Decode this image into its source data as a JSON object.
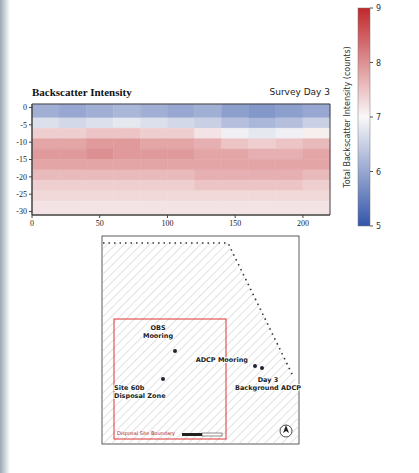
{
  "chart_data": {
    "type": "heatmap",
    "title": "Backscatter Intensity",
    "subtitle": "Survey Day 3",
    "x_edges": [
      0,
      20,
      40,
      60,
      80,
      100,
      120,
      140,
      160,
      180,
      200,
      220
    ],
    "y_edges": [
      1,
      -3,
      -6,
      -9,
      -12,
      -15,
      -18,
      -21,
      -24,
      -27,
      -31
    ],
    "cells": [
      [
        6.1,
        6.0,
        6.1,
        6.2,
        6.1,
        6.0,
        6.1,
        5.9,
        5.8,
        5.9,
        6.0
      ],
      [
        6.7,
        6.6,
        6.7,
        6.8,
        6.7,
        6.6,
        6.5,
        6.3,
        6.2,
        6.3,
        6.5
      ],
      [
        7.4,
        7.4,
        7.5,
        7.5,
        7.4,
        7.4,
        7.2,
        6.9,
        6.8,
        6.9,
        7.1
      ],
      [
        7.8,
        7.8,
        7.9,
        7.9,
        7.8,
        7.8,
        7.7,
        7.5,
        7.4,
        7.5,
        7.6
      ],
      [
        7.9,
        7.9,
        8.0,
        7.9,
        7.9,
        7.9,
        7.8,
        7.8,
        7.7,
        7.7,
        7.8
      ],
      [
        7.8,
        7.8,
        7.8,
        7.8,
        7.8,
        7.8,
        7.8,
        7.8,
        7.8,
        7.8,
        7.8
      ],
      [
        7.6,
        7.6,
        7.6,
        7.6,
        7.6,
        7.6,
        7.7,
        7.7,
        7.7,
        7.7,
        7.6
      ],
      [
        7.4,
        7.4,
        7.4,
        7.4,
        7.4,
        7.4,
        7.5,
        7.5,
        7.5,
        7.5,
        7.4
      ],
      [
        7.3,
        7.3,
        7.3,
        7.3,
        7.3,
        7.3,
        7.3,
        7.3,
        7.3,
        7.3,
        7.3
      ],
      [
        7.2,
        7.2,
        7.2,
        7.2,
        7.2,
        7.2,
        7.2,
        7.2,
        7.2,
        7.2,
        7.2
      ]
    ],
    "xlim": [
      0,
      220
    ],
    "xticks": [
      0,
      50,
      100,
      150,
      200
    ],
    "ylim": [
      -31,
      1
    ],
    "yticks": [
      0,
      -5,
      -10,
      -15,
      -20,
      -25,
      -30
    ],
    "colorbar": {
      "label": "Total Backscatter Intensity (counts)",
      "range": [
        5,
        9
      ],
      "ticks": [
        5,
        6,
        7,
        8,
        9
      ]
    }
  },
  "map": {
    "points": [
      {
        "label": "OBS Mooring"
      },
      {
        "label": "Site 60b Disposal Zone"
      },
      {
        "label": "ADCP Mooring"
      },
      {
        "label": "Day 3 Background ADCP"
      }
    ],
    "boundary_label": "Disposal Site Boundary"
  }
}
